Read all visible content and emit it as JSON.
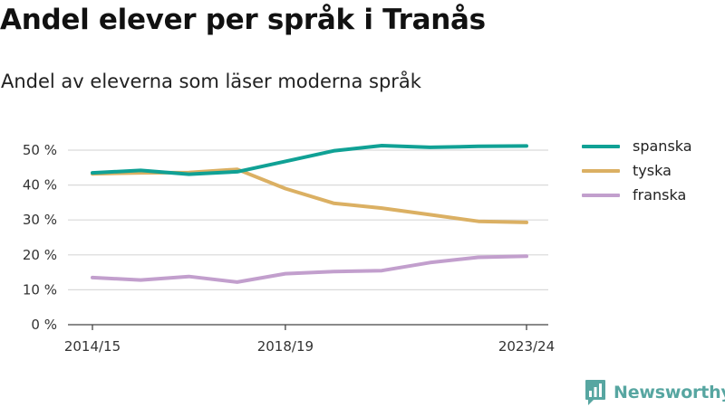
{
  "title": "Andel elever per språk i Tranås",
  "subtitle": "Andel av eleverna som läser moderna språk",
  "brand": {
    "name": "Newsworthy",
    "color": "#57a6a1",
    "icon": "newsworthy-logo-icon"
  },
  "chart_data": {
    "type": "line",
    "x": [
      "2014/15",
      "2015/16",
      "2016/17",
      "2017/18",
      "2018/19",
      "2019/20",
      "2020/21",
      "2021/22",
      "2022/23",
      "2023/24"
    ],
    "x_tick_labels": [
      "2014/15",
      "2018/19",
      "2023/24"
    ],
    "y_tick_labels": [
      "0 %",
      "10 %",
      "20 %",
      "30 %",
      "40 %",
      "50 %"
    ],
    "ylim": [
      0,
      55
    ],
    "grid": true,
    "legend_position": "right",
    "series": [
      {
        "name": "spanska",
        "color": "#10a195",
        "values": [
          43.5,
          44.2,
          43.1,
          43.8,
          46.8,
          49.8,
          51.3,
          50.8,
          51.1,
          51.2
        ]
      },
      {
        "name": "tyska",
        "color": "#dbb063",
        "values": [
          43.2,
          43.5,
          43.6,
          44.5,
          39.0,
          34.8,
          33.4,
          31.5,
          29.6,
          29.3
        ]
      },
      {
        "name": "franska",
        "color": "#c29fcd",
        "values": [
          13.5,
          12.8,
          13.8,
          12.2,
          14.6,
          15.2,
          15.5,
          17.8,
          19.3,
          19.6
        ]
      }
    ]
  }
}
